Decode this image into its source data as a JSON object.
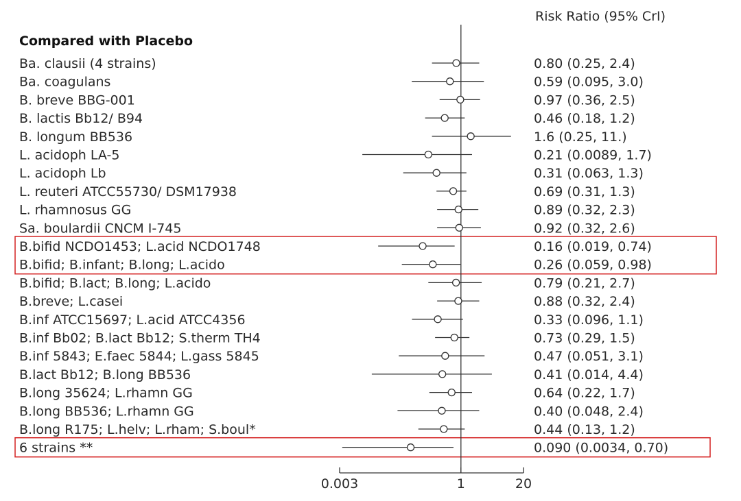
{
  "chart_data": {
    "type": "forest",
    "title": "",
    "column_header": "Risk Ratio (95% CrI)",
    "group_label": "Compared with Placebo",
    "x_scale": "log",
    "xlim": [
      0.003,
      20
    ],
    "x_ticks": [
      "0.003",
      "1",
      "20"
    ],
    "reference_line": 1,
    "rows": [
      {
        "label": "Ba. clausii (4 strains)",
        "rr": 0.8,
        "lo": 0.25,
        "hi": 2.4,
        "ci_text": "0.80 (0.25, 2.4)"
      },
      {
        "label": "Ba. coagulans",
        "rr": 0.59,
        "lo": 0.095,
        "hi": 3.0,
        "ci_text": "0.59 (0.095, 3.0)"
      },
      {
        "label": "B. breve BBG-001",
        "rr": 0.97,
        "lo": 0.36,
        "hi": 2.5,
        "ci_text": "0.97 (0.36, 2.5)"
      },
      {
        "label": "B. lactis Bb12/ B94",
        "rr": 0.46,
        "lo": 0.18,
        "hi": 1.2,
        "ci_text": "0.46 (0.18, 1.2)"
      },
      {
        "label": "B. longum BB536",
        "rr": 1.6,
        "lo": 0.25,
        "hi": 11,
        "ci_text": "1.6 (0.25, 11.)"
      },
      {
        "label": "L. acidoph LA-5",
        "rr": 0.21,
        "lo": 0.0089,
        "hi": 1.7,
        "ci_text": "0.21 (0.0089, 1.7)"
      },
      {
        "label": "L. acidoph Lb",
        "rr": 0.31,
        "lo": 0.063,
        "hi": 1.3,
        "ci_text": "0.31 (0.063, 1.3)"
      },
      {
        "label": "L. reuteri ATCC55730/ DSM17938",
        "rr": 0.69,
        "lo": 0.31,
        "hi": 1.3,
        "ci_text": "0.69 (0.31, 1.3)"
      },
      {
        "label": "L. rhamnosus GG",
        "rr": 0.89,
        "lo": 0.32,
        "hi": 2.3,
        "ci_text": "0.89 (0.32, 2.3)"
      },
      {
        "label": "Sa. boulardii CNCM I-745",
        "rr": 0.92,
        "lo": 0.32,
        "hi": 2.6,
        "ci_text": "0.92 (0.32, 2.6)"
      },
      {
        "label": "B.bifid NCDO1453; L.acid NCDO1748",
        "rr": 0.16,
        "lo": 0.019,
        "hi": 0.74,
        "ci_text": "0.16 (0.019, 0.74)"
      },
      {
        "label": "B.bifid; B.infant; B.long; L.acido",
        "rr": 0.26,
        "lo": 0.059,
        "hi": 0.98,
        "ci_text": "0.26 (0.059, 0.98)"
      },
      {
        "label": "B.bifid; B.lact; B.long; L.acido",
        "rr": 0.79,
        "lo": 0.21,
        "hi": 2.7,
        "ci_text": "0.79 (0.21, 2.7)"
      },
      {
        "label": "B.breve; L.casei",
        "rr": 0.88,
        "lo": 0.32,
        "hi": 2.4,
        "ci_text": "0.88 (0.32, 2.4)"
      },
      {
        "label": "B.inf ATCC15697; L.acid ATCC4356",
        "rr": 0.33,
        "lo": 0.096,
        "hi": 1.1,
        "ci_text": "0.33 (0.096, 1.1)"
      },
      {
        "label": "B.inf Bb02; B.lact Bb12; S.therm TH4",
        "rr": 0.73,
        "lo": 0.29,
        "hi": 1.5,
        "ci_text": "0.73 (0.29, 1.5)"
      },
      {
        "label": "B.inf 5843; E.faec 5844; L.gass 5845",
        "rr": 0.47,
        "lo": 0.051,
        "hi": 3.1,
        "ci_text": "0.47 (0.051, 3.1)"
      },
      {
        "label": "B.lact Bb12; B.long BB536",
        "rr": 0.41,
        "lo": 0.014,
        "hi": 4.4,
        "ci_text": "0.41 (0.014, 4.4)"
      },
      {
        "label": "B.long 35624; L.rhamn GG",
        "rr": 0.64,
        "lo": 0.22,
        "hi": 1.7,
        "ci_text": "0.64 (0.22, 1.7)"
      },
      {
        "label": "B.long BB536; L.rhamn GG",
        "rr": 0.4,
        "lo": 0.048,
        "hi": 2.4,
        "ci_text": "0.40 (0.048, 2.4)"
      },
      {
        "label": "B.long R175; L.helv; L.rham; S.boul*",
        "rr": 0.44,
        "lo": 0.13,
        "hi": 1.2,
        "ci_text": "0.44 (0.13, 1.2)"
      },
      {
        "label": "6 strains **",
        "rr": 0.09,
        "lo": 0.0034,
        "hi": 0.7,
        "ci_text": "0.090 (0.0034, 0.70)"
      }
    ],
    "highlighted_rows": [
      [
        10,
        11
      ],
      [
        21,
        21
      ]
    ],
    "colors": {
      "line": "#333333",
      "marker_fill": "#ffffff",
      "highlight": "#d42020"
    }
  }
}
